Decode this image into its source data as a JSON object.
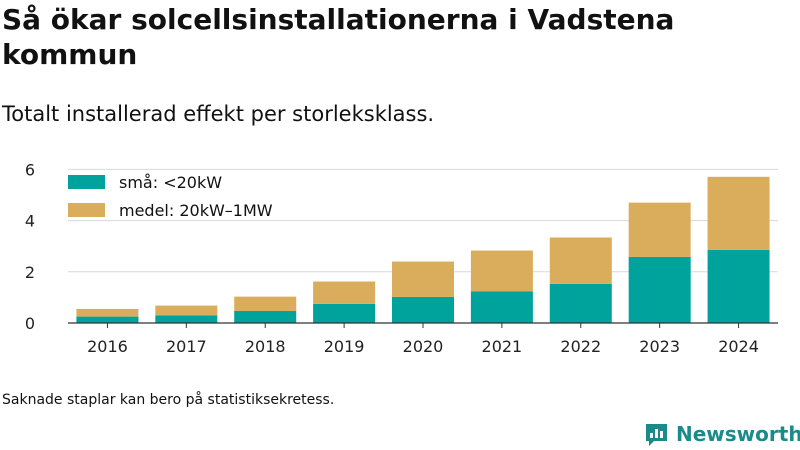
{
  "title": "Så ökar solcellsinstallationerna i Vadstena kommun",
  "subtitle": "Totalt installerad effekt per storleksklass.",
  "footnote": "Saknade staplar kan bero på statistiksekretess.",
  "brand": {
    "name": "Newsworthy",
    "icon": "newsworthy-logo-icon",
    "color": "#1a8a8a"
  },
  "chart_data": {
    "type": "bar",
    "stacked": true,
    "categories": [
      "2016",
      "2017",
      "2018",
      "2019",
      "2020",
      "2021",
      "2022",
      "2023",
      "2024"
    ],
    "series": [
      {
        "name": "små: <20kW",
        "color": "#00a39b",
        "values": [
          0.25,
          0.3,
          0.47,
          0.75,
          1.02,
          1.23,
          1.53,
          2.58,
          2.86
        ]
      },
      {
        "name": "medel: 20kW–1MW",
        "color": "#d9ad5b",
        "values": [
          0.3,
          0.38,
          0.56,
          0.87,
          1.38,
          1.6,
          1.81,
          2.12,
          2.85
        ]
      }
    ],
    "y_ticks": [
      "0",
      "2",
      "4",
      "6"
    ],
    "ylim": [
      0,
      6.4
    ],
    "grid": true,
    "legend": "top-left"
  }
}
